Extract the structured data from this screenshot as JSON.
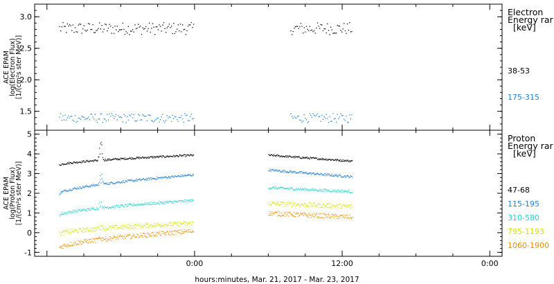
{
  "chart_data": [
    {
      "type": "scatter",
      "panel": "electron",
      "ylabel_lines": [
        "ACE EPAM",
        "log(Electron Flux)",
        "[1/(cm²s ster MeV)]"
      ],
      "ylim": [
        1.2,
        3.2
      ],
      "yticks": [
        1.5,
        2.0,
        2.5,
        3.0
      ],
      "ytick_labels": [
        "1.5",
        "2.0",
        "2.5",
        "3.0"
      ],
      "legend_title": [
        "Electron",
        "Energy rar",
        "[keV]"
      ],
      "legend_placement": "right",
      "series": [
        {
          "name": "38-53",
          "color": "#000000",
          "level": 2.82,
          "spread": 0.06,
          "segments": [
            [
              -11.0,
              -0.1
            ],
            [
              7.8,
              12.8
            ]
          ]
        },
        {
          "name": "175-315",
          "color": "#1e7fd6",
          "level": 1.4,
          "spread": 0.045,
          "segments": [
            [
              -11.0,
              -0.1
            ],
            [
              7.8,
              12.8
            ]
          ]
        }
      ]
    },
    {
      "type": "scatter",
      "panel": "proton",
      "ylabel_lines": [
        "ACE EPAM",
        "log(Proton Flux)",
        "[1/(cm²s ster MeV)]"
      ],
      "ylim": [
        -1.2,
        5.2
      ],
      "yticks": [
        -1,
        0,
        1,
        2,
        3,
        4,
        5
      ],
      "ytick_labels": [
        "-1",
        "0",
        "1",
        "2",
        "3",
        "4",
        "5"
      ],
      "legend_title": [
        "Proton",
        "Energy rar",
        "[keV]"
      ],
      "legend_placement": "right",
      "series": [
        {
          "name": "47-68",
          "color": "#000000",
          "a_start": 3.45,
          "a_end": 3.95,
          "b_start": 3.95,
          "b_end": 3.65,
          "spread": 0.05,
          "spike": 4.8
        },
        {
          "name": "115-195",
          "color": "#1e7fd6",
          "a_start": 2.0,
          "a_end": 2.95,
          "b_start": 3.2,
          "b_end": 2.85,
          "spread": 0.06,
          "spike": 3.2
        },
        {
          "name": "310-580",
          "color": "#22d3d3",
          "a_start": 0.9,
          "a_end": 1.65,
          "b_start": 2.3,
          "b_end": 2.1,
          "spread": 0.07,
          "spike": 1.9
        },
        {
          "name": "795-1193",
          "color": "#d4e300",
          "a_start": -0.05,
          "a_end": 0.5,
          "b_start": 1.5,
          "b_end": 1.35,
          "spread": 0.12,
          "spike": 0.5
        },
        {
          "name": "1060-1900",
          "color": "#f08c00",
          "a_start": -0.75,
          "a_end": 0.1,
          "b_start": 1.0,
          "b_end": 0.8,
          "spread": 0.12,
          "spike": -0.2
        }
      ]
    }
  ],
  "x_axis": {
    "tick_labels": [
      "0:00",
      "12:00",
      "0:00"
    ],
    "tick_hours": [
      0,
      12,
      24
    ],
    "xlim_hours": [
      -13.0,
      25.0
    ],
    "label": "hours:minutes, Mar. 21, 2017 - Mar. 23, 2017"
  }
}
